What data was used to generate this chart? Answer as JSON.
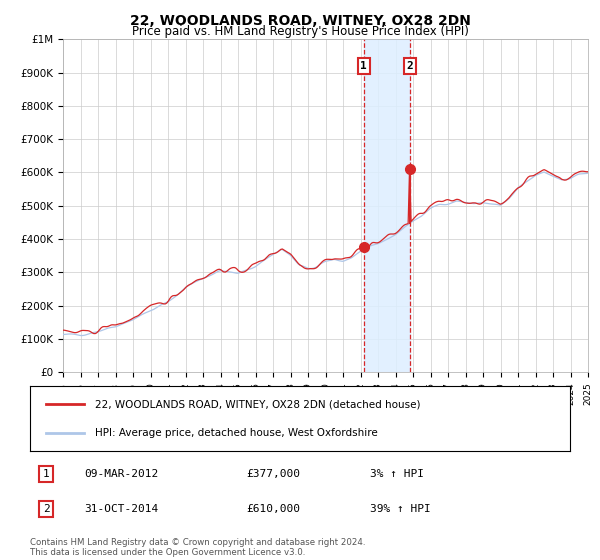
{
  "title": "22, WOODLANDS ROAD, WITNEY, OX28 2DN",
  "subtitle": "Price paid vs. HM Land Registry's House Price Index (HPI)",
  "x_start_year": 1995,
  "x_end_year": 2025,
  "y_min": 0,
  "y_max": 1000000,
  "y_ticks": [
    0,
    100000,
    200000,
    300000,
    400000,
    500000,
    600000,
    700000,
    800000,
    900000,
    1000000
  ],
  "y_tick_labels": [
    "£0",
    "£100K",
    "£200K",
    "£300K",
    "£400K",
    "£500K",
    "£600K",
    "£700K",
    "£800K",
    "£900K",
    "£1M"
  ],
  "hpi_color": "#aec6e8",
  "price_color": "#d62728",
  "sale1_date": 2012.19,
  "sale1_price": 377000,
  "sale2_date": 2014.83,
  "sale2_price": 610000,
  "legend_line1": "22, WOODLANDS ROAD, WITNEY, OX28 2DN (detached house)",
  "legend_line2": "HPI: Average price, detached house, West Oxfordshire",
  "footer": "Contains HM Land Registry data © Crown copyright and database right 2024.\nThis data is licensed under the Open Government Licence v3.0.",
  "background_color": "#ffffff",
  "grid_color": "#cccccc",
  "shade_color": "#ddeeff",
  "table_rows": [
    {
      "num": "1",
      "date": "09-MAR-2012",
      "price": "£377,000",
      "pct": "3% ↑ HPI"
    },
    {
      "num": "2",
      "date": "31-OCT-2014",
      "price": "£610,000",
      "pct": "39% ↑ HPI"
    }
  ]
}
